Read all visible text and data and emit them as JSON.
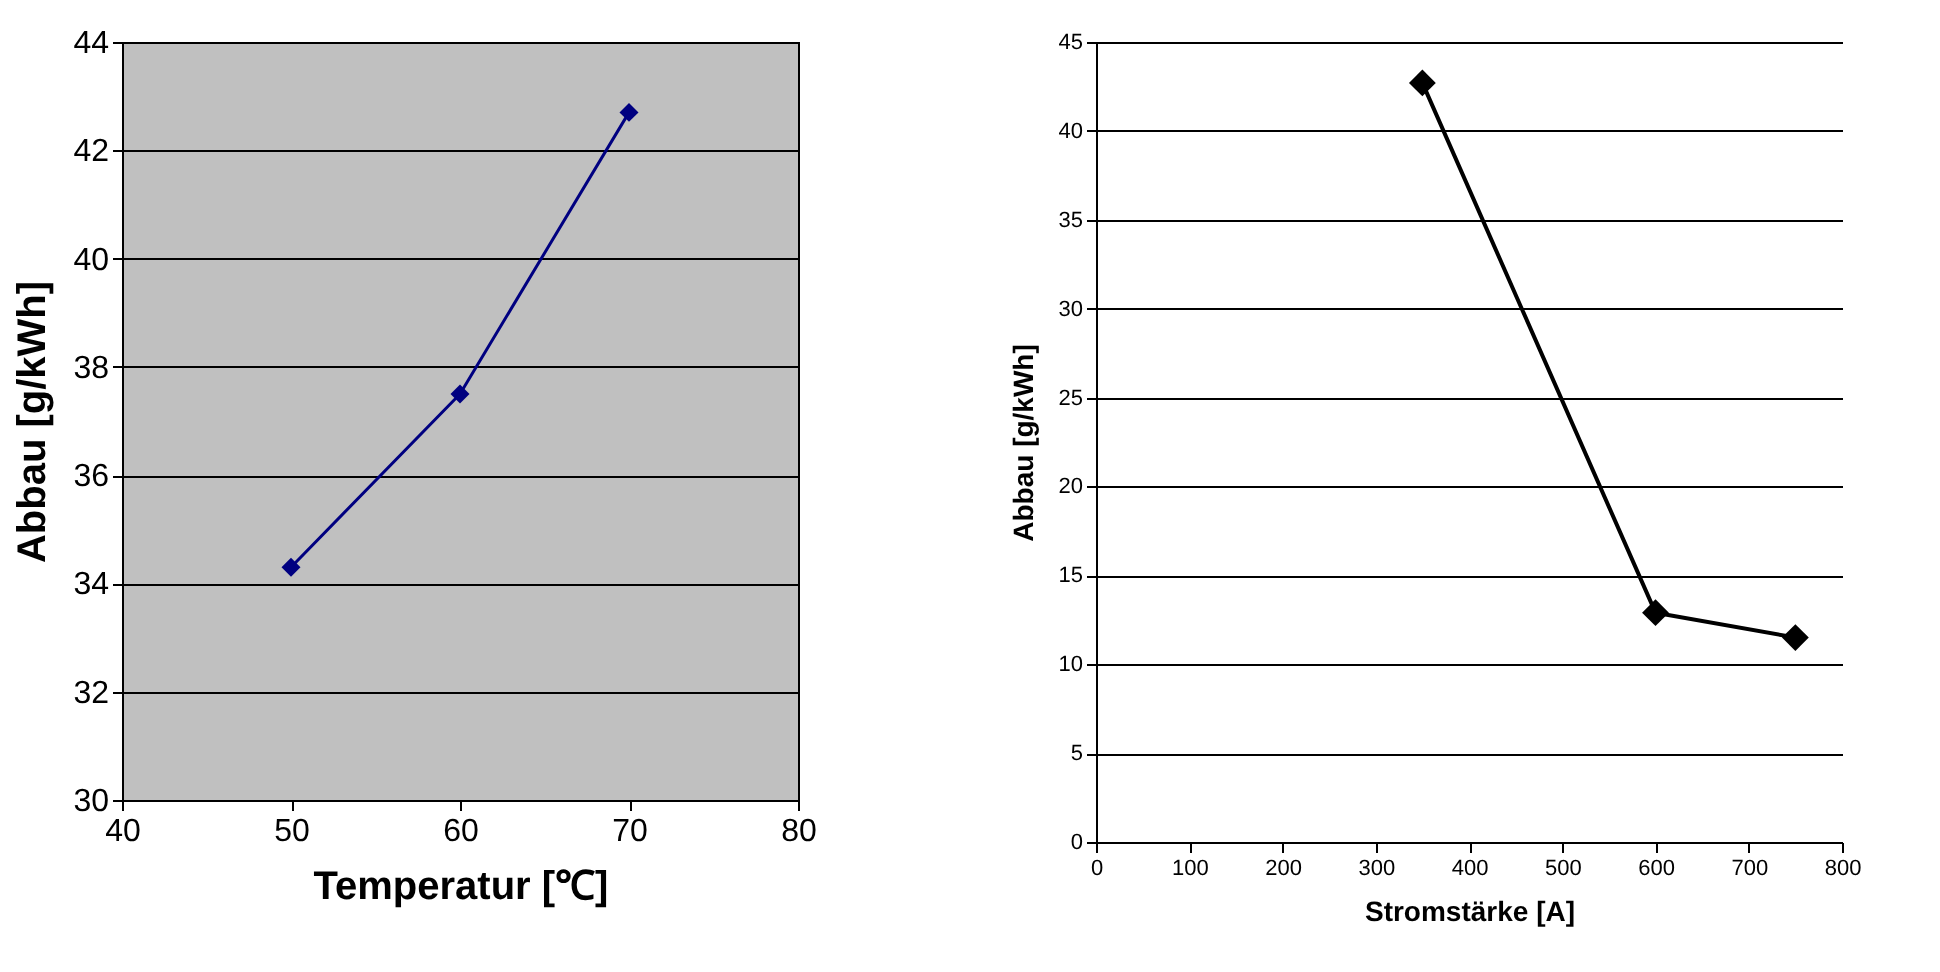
{
  "chart_data": [
    {
      "type": "line",
      "xlabel": "Temperatur [℃]",
      "ylabel": "Abbau [g/kWh]",
      "x": [
        50,
        60,
        70
      ],
      "series": [
        {
          "color": "#000080",
          "values": [
            34.3,
            37.5,
            42.7
          ]
        }
      ],
      "xlim": [
        40,
        80
      ],
      "xticks": [
        40,
        50,
        60,
        70,
        80
      ],
      "ylim": [
        30,
        44
      ],
      "yticks": [
        30,
        32,
        34,
        36,
        38,
        40,
        42,
        44
      ],
      "grid": "y",
      "marker": "diamond",
      "line_style": "solid"
    },
    {
      "type": "line",
      "xlabel": "Stromstärke [A]",
      "ylabel": "Abbau [g/kWh]",
      "x": [
        350,
        600,
        750
      ],
      "series": [
        {
          "color": "#000000",
          "values": [
            42.7,
            12.9,
            11.5
          ]
        }
      ],
      "xlim": [
        0,
        800
      ],
      "xticks": [
        0,
        100,
        200,
        300,
        400,
        500,
        600,
        700,
        800
      ],
      "ylim": [
        0,
        45
      ],
      "yticks": [
        0,
        5,
        10,
        15,
        20,
        25,
        30,
        35,
        40,
        45
      ],
      "grid": "y",
      "marker": "diamond",
      "line_style": "solid"
    }
  ]
}
